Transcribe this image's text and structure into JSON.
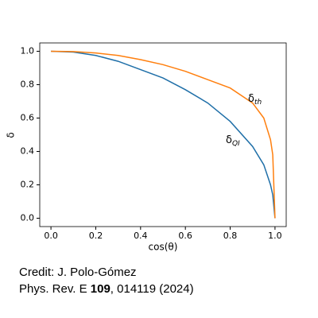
{
  "chart_data": {
    "type": "line",
    "xlabel": "cos(θ)",
    "ylabel": "δ",
    "x": [
      0,
      0.1,
      0.2,
      0.3,
      0.4,
      0.5,
      0.6,
      0.7,
      0.8,
      0.9,
      0.95,
      0.98,
      0.99,
      1.0
    ],
    "series": [
      {
        "name": "δ_QI",
        "color": "#1f6fa8",
        "values": [
          1,
          0.995,
          0.975,
          0.94,
          0.89,
          0.84,
          0.77,
          0.69,
          0.58,
          0.43,
          0.32,
          0.2,
          0.14,
          0
        ]
      },
      {
        "name": "δ_th",
        "color": "#ff7f0e",
        "values": [
          1,
          0.998,
          0.99,
          0.975,
          0.95,
          0.92,
          0.88,
          0.83,
          0.78,
          0.69,
          0.6,
          0.47,
          0.38,
          0
        ]
      }
    ],
    "annotations": [
      {
        "main": "δ",
        "sub": "th"
      },
      {
        "main": "δ",
        "sub": "QI"
      }
    ],
    "xlim": [
      -0.05,
      1.05
    ],
    "ylim": [
      -0.05,
      1.05
    ],
    "xticks": [
      {
        "value": 0,
        "label": "0.0"
      },
      {
        "value": 0.2,
        "label": "0.2"
      },
      {
        "value": 0.4,
        "label": "0.4"
      },
      {
        "value": 0.6,
        "label": "0.6"
      },
      {
        "value": 0.8,
        "label": "0.8"
      },
      {
        "value": 1,
        "label": "1.0"
      }
    ],
    "yticks": [
      {
        "value": 0,
        "label": "0.0"
      },
      {
        "value": 0.2,
        "label": "0.2"
      },
      {
        "value": 0.4,
        "label": "0.4"
      },
      {
        "value": 0.6,
        "label": "0.6"
      },
      {
        "value": 0.8,
        "label": "0.8"
      },
      {
        "value": 1,
        "label": "1.0"
      }
    ]
  },
  "credit": {
    "line1": "Credit: J. Polo-Gómez",
    "line2": [
      "Phys. Rev. E ",
      "109",
      ", 014119 (2024)"
    ]
  }
}
